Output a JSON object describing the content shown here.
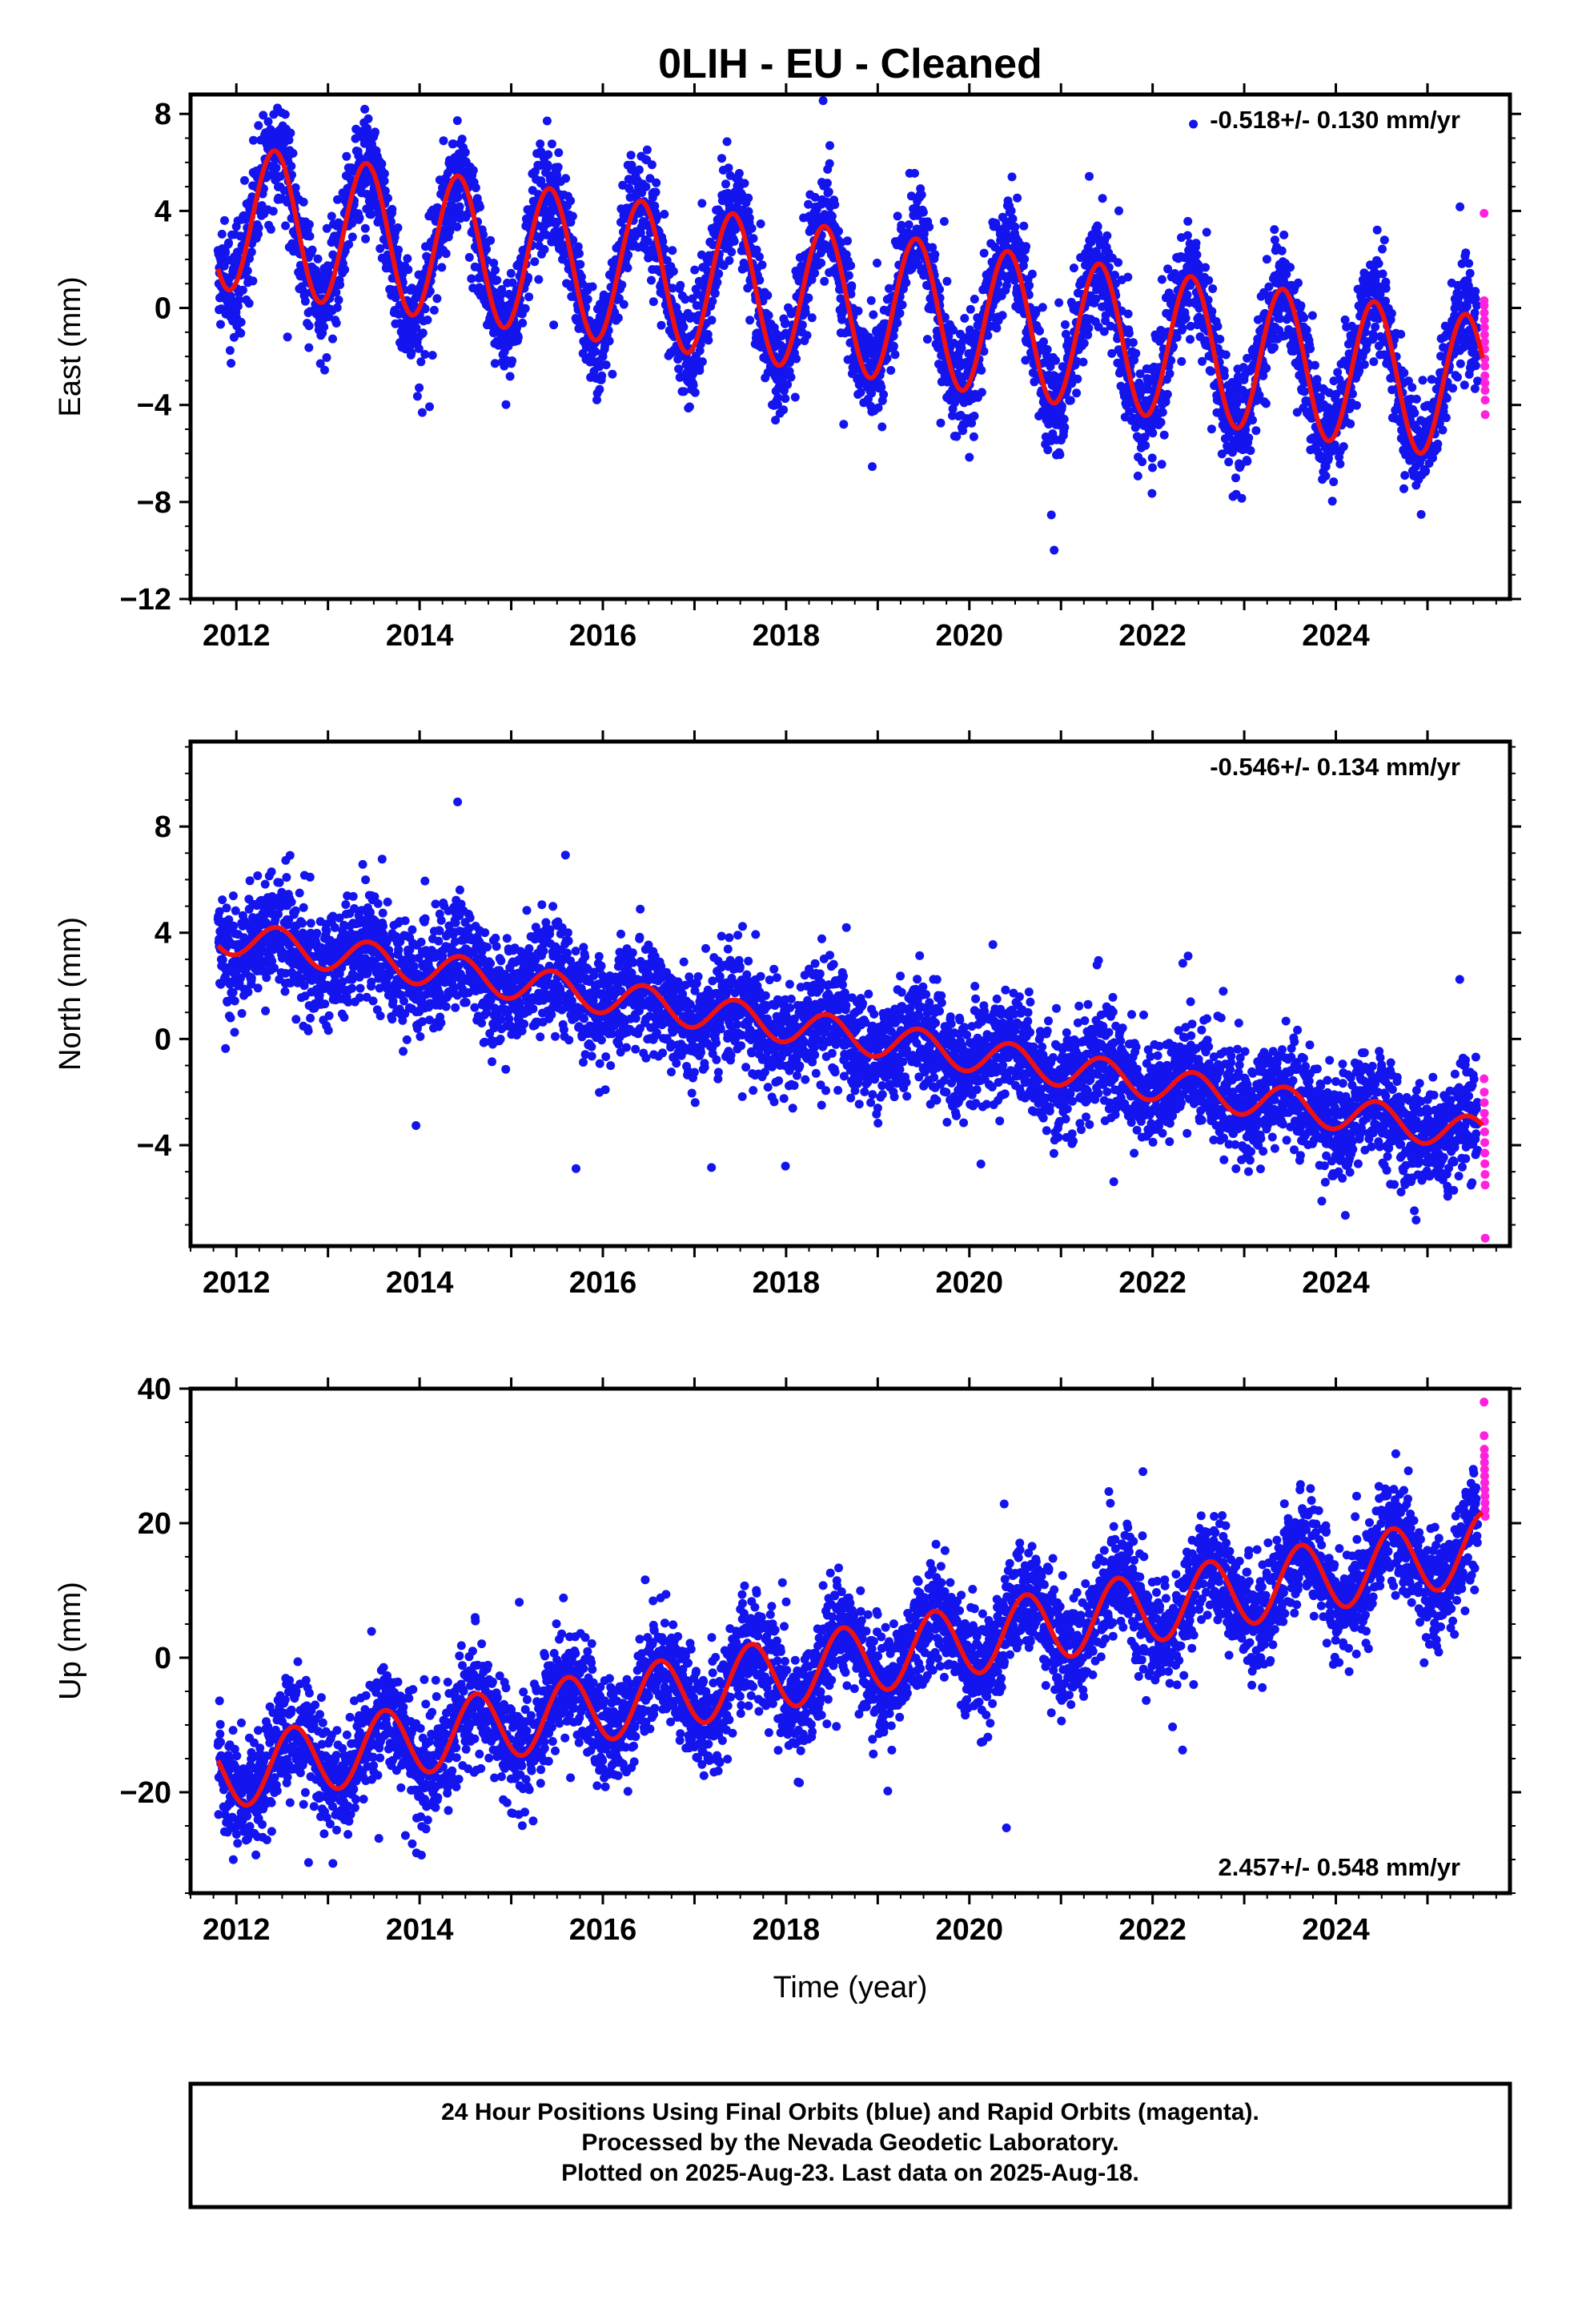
{
  "title": "0LIH  - EU - Cleaned",
  "colors": {
    "final": "#1414ee",
    "rapid": "#ff22dd",
    "model": "#ee1111",
    "frame": "#000000"
  },
  "chart_data": [
    {
      "type": "scatter",
      "ylabel": "East (mm)",
      "rate_label": "-0.518+/- 0.130 mm/yr",
      "xlim": [
        2011.5,
        2025.9
      ],
      "ylim": [
        -12,
        8.8
      ],
      "yticks": [
        8,
        4,
        0,
        -4,
        -8,
        -12
      ],
      "ytick_labels": [
        "8",
        "4",
        "0",
        "−4",
        "−8",
        "−12"
      ],
      "xticks": [
        2012,
        2014,
        2016,
        2018,
        2020,
        2022,
        2024
      ],
      "xtick_labels": [
        "2012",
        "2014",
        "2016",
        "2018",
        "2020",
        "2022",
        "2024"
      ],
      "grid": false,
      "series": [
        {
          "kind": "final_orbits",
          "start": 2011.8,
          "end": 2025.55,
          "intercept": 3.8,
          "rate": -0.518,
          "t0": 2011.8,
          "amplitude": 3.0,
          "phase_peak": 0.42,
          "semi_amplitude": 0,
          "noise_sd": 1.1
        },
        {
          "kind": "rapid_orbits",
          "start": 2025.55,
          "end": 2025.63,
          "values": [
            3.9,
            0.3,
            0.1,
            -0.2,
            -0.5,
            -0.8,
            -1.1,
            -1.4,
            -1.7,
            -2.1,
            -2.4,
            -2.8,
            -3.1,
            -3.4,
            -3.8,
            -4.4
          ]
        },
        {
          "kind": "model_fit",
          "start": 2011.8,
          "end": 2025.6,
          "intercept": 3.8,
          "rate": -0.518,
          "t0": 2011.8,
          "amplitude": 3.0,
          "phase_peak": 0.42,
          "semi_amplitude": 0
        }
      ]
    },
    {
      "type": "scatter",
      "ylabel": "North (mm)",
      "rate_label": "-0.546+/- 0.134 mm/yr",
      "xlim": [
        2011.5,
        2025.9
      ],
      "ylim": [
        -7.8,
        11.2
      ],
      "yticks": [
        8,
        4,
        0,
        -4
      ],
      "ytick_labels": [
        "8",
        "4",
        "0",
        "−4"
      ],
      "xticks": [
        2012,
        2014,
        2016,
        2018,
        2020,
        2022,
        2024
      ],
      "xtick_labels": [
        "2012",
        "2014",
        "2016",
        "2018",
        "2020",
        "2022",
        "2024"
      ],
      "grid": false,
      "series": [
        {
          "kind": "final_orbits",
          "start": 2011.8,
          "end": 2025.55,
          "intercept": 3.9,
          "rate": -0.546,
          "t0": 2011.8,
          "amplitude": 0.65,
          "phase_peak": 0.45,
          "semi_amplitude": 0,
          "noise_sd": 1.0
        },
        {
          "kind": "rapid_orbits",
          "start": 2025.55,
          "end": 2025.63,
          "values": [
            -1.5,
            -2.0,
            -2.4,
            -2.8,
            -3.1,
            -3.5,
            -3.9,
            -4.3,
            -4.7,
            -5.1,
            -5.5,
            -7.5
          ]
        },
        {
          "kind": "model_fit",
          "start": 2011.8,
          "end": 2025.6,
          "intercept": 3.9,
          "rate": -0.546,
          "t0": 2011.8,
          "amplitude": 0.65,
          "phase_peak": 0.45,
          "semi_amplitude": 0
        }
      ]
    },
    {
      "type": "scatter",
      "ylabel": "Up (mm)",
      "xlabel": "Time (year)",
      "rate_label": "2.457+/- 0.548 mm/yr",
      "xlim": [
        2011.5,
        2025.9
      ],
      "ylim": [
        -35,
        40
      ],
      "yticks": [
        40,
        20,
        0,
        -20
      ],
      "ytick_labels": [
        "40",
        "20",
        "0",
        "−20"
      ],
      "xticks": [
        2012,
        2014,
        2016,
        2018,
        2020,
        2022,
        2024
      ],
      "xtick_labels": [
        "2012",
        "2014",
        "2016",
        "2018",
        "2020",
        "2022",
        "2024"
      ],
      "grid": false,
      "series": [
        {
          "kind": "final_orbits",
          "start": 2011.8,
          "end": 2025.55,
          "intercept": -17.5,
          "rate": 2.457,
          "t0": 2011.8,
          "amplitude": 5.2,
          "phase_peak": 0.62,
          "semi_amplitude": 0,
          "noise_sd": 4.0
        },
        {
          "kind": "rapid_orbits",
          "start": 2025.55,
          "end": 2025.63,
          "values": [
            38,
            33,
            31,
            30,
            29,
            28,
            27,
            26,
            25,
            24,
            23,
            22,
            21
          ]
        },
        {
          "kind": "model_fit",
          "start": 2011.8,
          "end": 2025.6,
          "intercept": -17.5,
          "rate": 2.457,
          "t0": 2011.8,
          "amplitude": 5.2,
          "phase_peak": 0.62,
          "semi_amplitude": 0
        }
      ]
    }
  ],
  "footer": {
    "line1": "24 Hour Positions Using Final Orbits (blue) and Rapid Orbits (magenta).",
    "line2": "Processed by the Nevada Geodetic Laboratory.",
    "line3": "Plotted on 2025-Aug-23. Last data on 2025-Aug-18."
  }
}
